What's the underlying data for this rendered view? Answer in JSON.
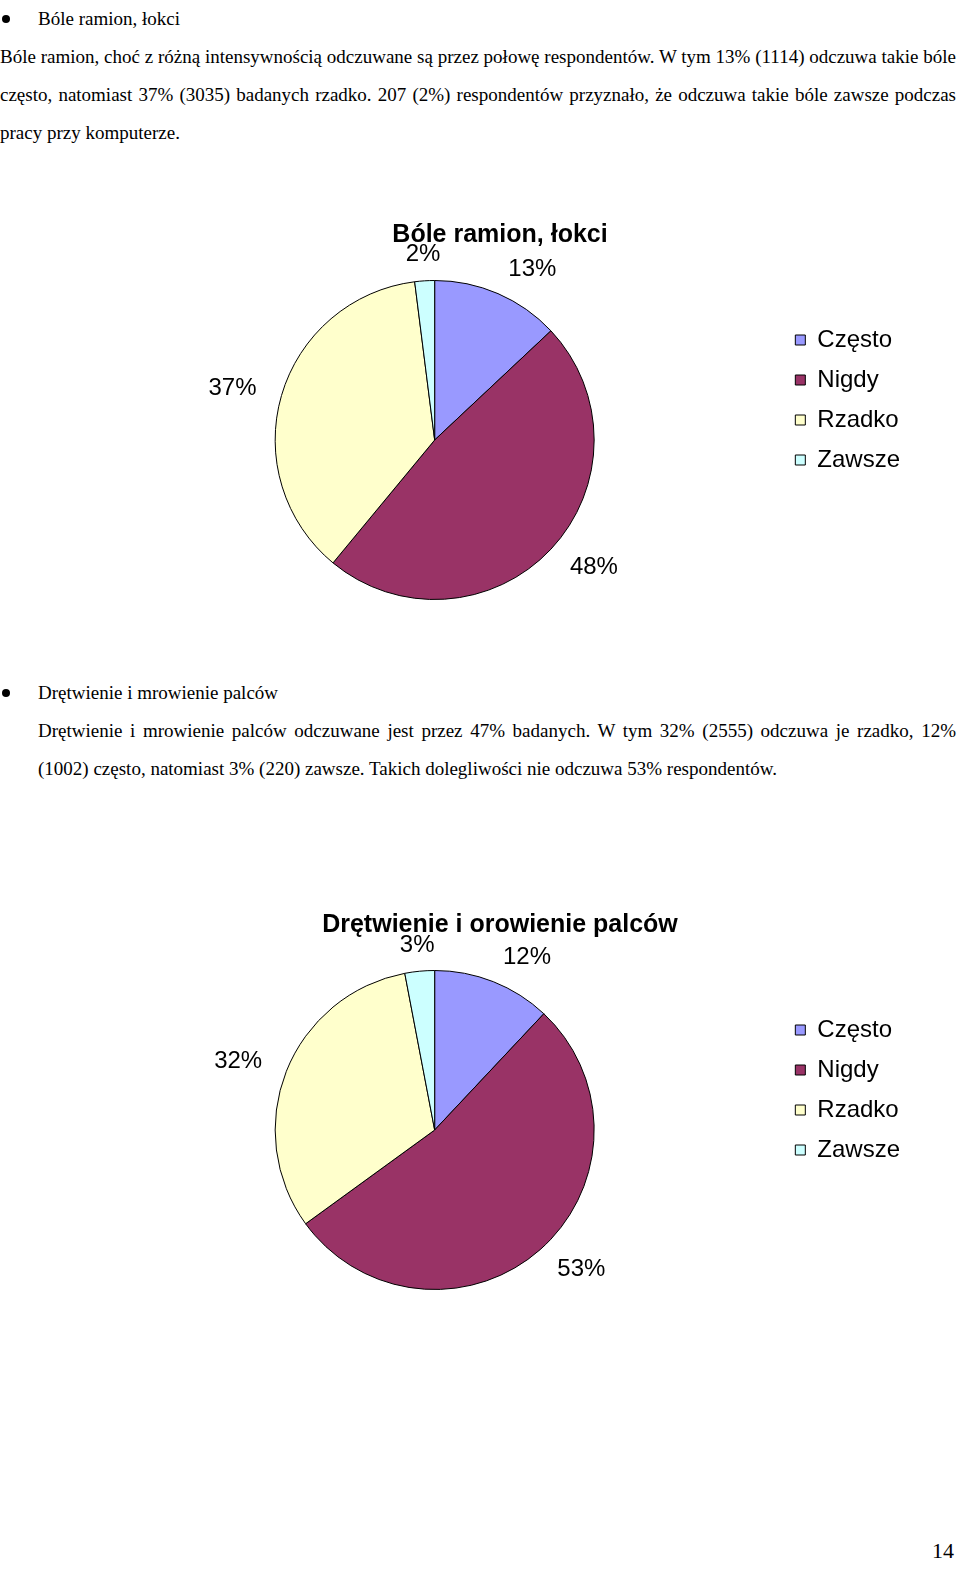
{
  "sections": [
    {
      "heading": "Bóle ramion, łokci",
      "paragraph": "Bóle ramion, choć z różną intensywnością odczuwane są przez połowę respondentów. W tym 13% (1114) odczuwa takie bóle często, natomiast 37% (3035) badanych rzadko. 207 (2%) respondentów przyznało, że odczuwa takie bóle zawsze podczas pracy przy komputerze."
    },
    {
      "heading": "Drętwienie i mrowienie palców",
      "paragraph": "Drętwienie i mrowienie palców odczuwane jest przez 47% badanych. W tym 32% (2555) odczuwa je rzadko, 12% (1002) często, natomiast 3% (220) zawsze. Takich dolegliwości nie odczuwa 53% respondentów."
    }
  ],
  "chart_data": [
    {
      "type": "pie",
      "title": "Bóle ramion, łokci",
      "categories": [
        "Często",
        "Nigdy",
        "Rzadko",
        "Zawsze"
      ],
      "values": [
        13,
        48,
        37,
        2
      ],
      "value_labels": [
        "13%",
        "48%",
        "37%",
        "2%"
      ],
      "colors": [
        "#9999ff",
        "#993366",
        "#ffffcc",
        "#ccffff"
      ],
      "data_labels": true,
      "legend": "right"
    },
    {
      "type": "pie",
      "title": "Drętwienie i orowienie palców",
      "categories": [
        "Często",
        "Nigdy",
        "Rzadko",
        "Zawsze"
      ],
      "values": [
        12,
        53,
        32,
        3
      ],
      "value_labels": [
        "12%",
        "53%",
        "32%",
        "3%"
      ],
      "colors": [
        "#9999ff",
        "#993366",
        "#ffffcc",
        "#ccffff"
      ],
      "data_labels": true,
      "legend": "right"
    }
  ],
  "page_number": "14"
}
